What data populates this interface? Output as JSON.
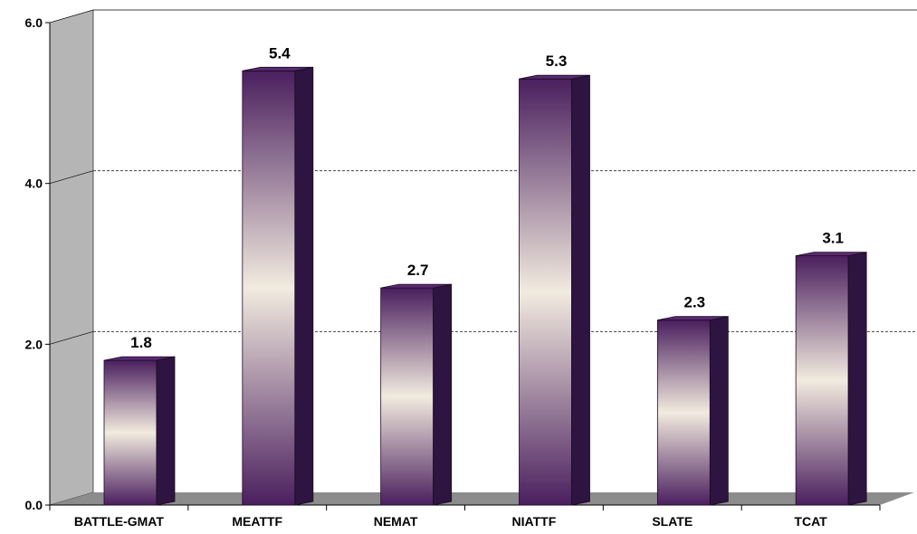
{
  "chart_data": {
    "type": "bar",
    "categories": [
      "BATTLE-GMAT",
      "MEATTF",
      "NEMAT",
      "NIATTF",
      "SLATE",
      "TCAT"
    ],
    "values": [
      1.8,
      5.4,
      2.7,
      5.3,
      2.3,
      3.1
    ],
    "value_labels": [
      "1.8",
      "5.4",
      "2.7",
      "5.3",
      "2.3",
      "3.1"
    ],
    "y_ticks": [
      "0.0",
      "2.0",
      "4.0",
      "6.0"
    ],
    "ylim": [
      0,
      6
    ],
    "grid": true,
    "style": "3d-column",
    "colors": {
      "bar_dark": "#4a1f5e",
      "bar_light": "#f2ebdf",
      "bar_side": "#2e1440",
      "bar_top": "#5a2a70",
      "wall": "#b5b5b5",
      "floor": "#8c8c8c",
      "grid": "#444444"
    }
  }
}
